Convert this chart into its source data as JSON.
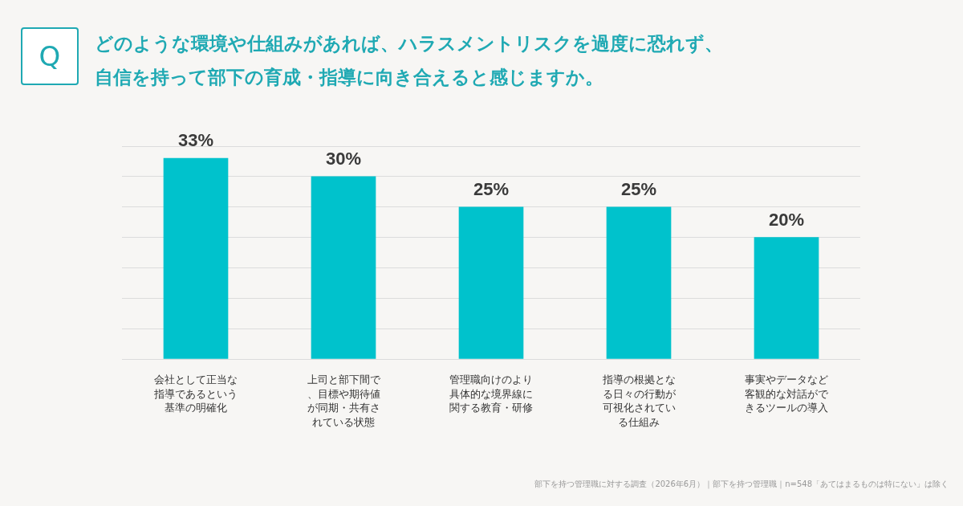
{
  "chart_data": {
    "type": "bar",
    "title": "どのような環境や仕組みがあれば、ハラスメントリスクを過度に恐れず、自信を持って部下の育成・指導に向き合えると感じますか。",
    "categories": [
      "会社として正当な指導であるという基準の明確化",
      "上司と部下間で、目標や期待値が同期・共有されている状態",
      "管理職向けのより具体的な境界線に関する教育・研修",
      "指導の根拠となる日々の行動が可視化されている仕組み",
      "事実やデータなど客観的な対話ができるツールの導入"
    ],
    "values": [
      33,
      30,
      25,
      25,
      20
    ],
    "value_labels": [
      "33%",
      "30%",
      "25%",
      "25%",
      "20%"
    ],
    "color": "#00c2cc",
    "ylim": [
      0,
      35
    ],
    "yticks": [
      {
        "value": 0,
        "label": null
      },
      {
        "value": 5,
        "label": null
      },
      {
        "value": 10,
        "label": null
      },
      {
        "value": 15,
        "label": null
      },
      {
        "value": 20,
        "label": null
      },
      {
        "value": 25,
        "label": null
      },
      {
        "value": 30,
        "label": null
      },
      {
        "value": 35,
        "label": null
      }
    ],
    "grid": "y",
    "tick_labels": "x",
    "legend": false,
    "annotations": [
      "Q",
      "部下を持つ管理職に対する調査（2026年6月）｜部下を持つ管理職｜n=548「あてはまるものは特にない」は除く"
    ]
  }
}
